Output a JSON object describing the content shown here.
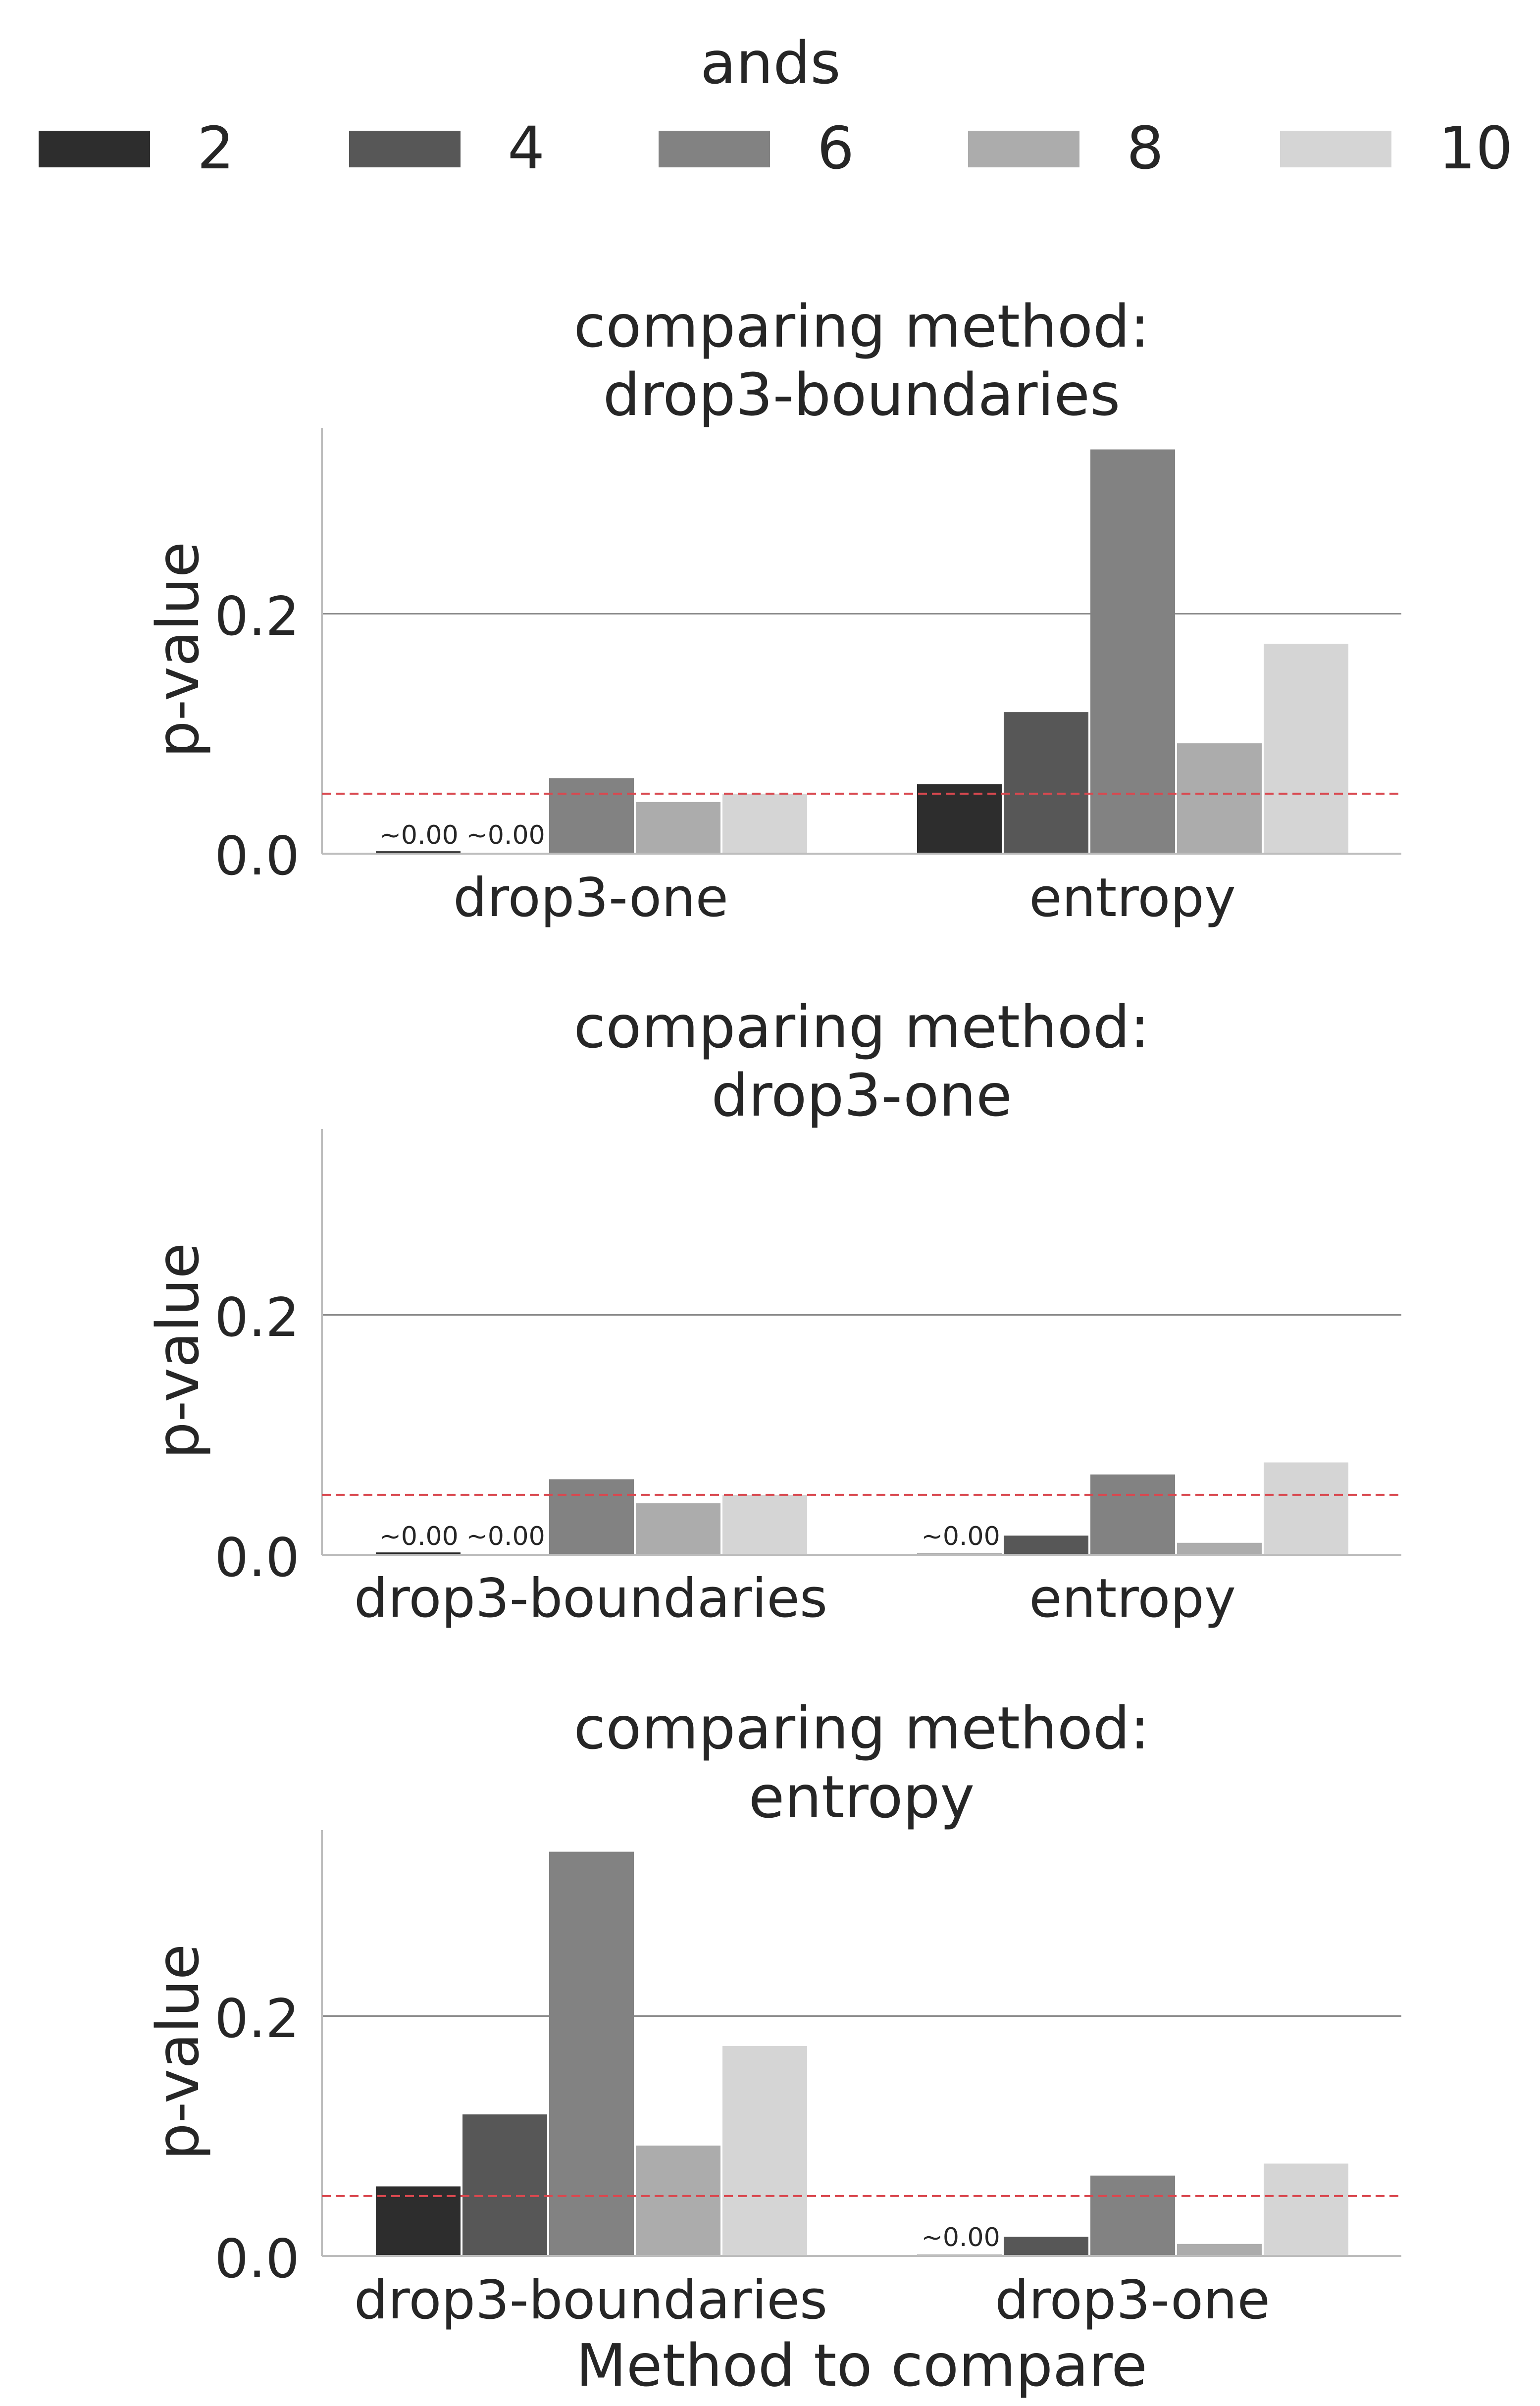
{
  "legend": {
    "title": "ands",
    "entries": [
      {
        "label": "2",
        "color": "#2d2d2d"
      },
      {
        "label": "4",
        "color": "#575757"
      },
      {
        "label": "6",
        "color": "#828282"
      },
      {
        "label": "8",
        "color": "#acacac"
      },
      {
        "label": "10",
        "color": "#d5d5d5"
      }
    ]
  },
  "colors": {
    "threshold_line": "#d9484f",
    "grid": "#8c8c8c",
    "axis": "#bdbdbd"
  },
  "chart_data": [
    {
      "type": "bar",
      "title": "comparing method:\ndrop3-boundaries",
      "title_lines": [
        "comparing method:",
        "drop3-boundaries"
      ],
      "ylabel": "p-value",
      "xlabel": "",
      "ylim": [
        0,
        0.355
      ],
      "yticks": [
        0.0,
        0.2
      ],
      "ytick_labels": [
        "0.0",
        "0.2"
      ],
      "gridlines": [
        0.2
      ],
      "threshold": 0.05,
      "categories": [
        "drop3-one",
        "entropy"
      ],
      "series": [
        {
          "name": "2",
          "values": [
            0.002,
            0.058
          ]
        },
        {
          "name": "4",
          "values": [
            0.0,
            0.118
          ]
        },
        {
          "name": "6",
          "values": [
            0.063,
            0.337
          ]
        },
        {
          "name": "8",
          "values": [
            0.043,
            0.092
          ]
        },
        {
          "name": "10",
          "values": [
            0.05,
            0.175
          ]
        }
      ],
      "annotations": [
        {
          "category": 0,
          "series": 0,
          "text": "~0.00"
        },
        {
          "category": 0,
          "series": 1,
          "text": "~0.00"
        }
      ]
    },
    {
      "type": "bar",
      "title": "comparing method:\ndrop3-one",
      "title_lines": [
        "comparing method:",
        "drop3-one"
      ],
      "ylabel": "p-value",
      "xlabel": "",
      "ylim": [
        0,
        0.355
      ],
      "yticks": [
        0.0,
        0.2
      ],
      "ytick_labels": [
        "0.0",
        "0.2"
      ],
      "gridlines": [
        0.2
      ],
      "threshold": 0.05,
      "categories": [
        "drop3-boundaries",
        "entropy"
      ],
      "series": [
        {
          "name": "2",
          "values": [
            0.002,
            0.001
          ]
        },
        {
          "name": "4",
          "values": [
            0.0,
            0.016
          ]
        },
        {
          "name": "6",
          "values": [
            0.063,
            0.067
          ]
        },
        {
          "name": "8",
          "values": [
            0.043,
            0.01
          ]
        },
        {
          "name": "10",
          "values": [
            0.05,
            0.077
          ]
        }
      ],
      "annotations": [
        {
          "category": 0,
          "series": 0,
          "text": "~0.00"
        },
        {
          "category": 0,
          "series": 1,
          "text": "~0.00"
        },
        {
          "category": 1,
          "series": 0,
          "text": "~0.00"
        }
      ]
    },
    {
      "type": "bar",
      "title": "comparing method:\nentropy",
      "title_lines": [
        "comparing method:",
        "entropy"
      ],
      "ylabel": "p-value",
      "xlabel": "Method to compare",
      "ylim": [
        0,
        0.355
      ],
      "yticks": [
        0.0,
        0.2
      ],
      "ytick_labels": [
        "0.0",
        "0.2"
      ],
      "gridlines": [
        0.2
      ],
      "threshold": 0.05,
      "categories": [
        "drop3-boundaries",
        "drop3-one"
      ],
      "series": [
        {
          "name": "2",
          "values": [
            0.058,
            0.001
          ]
        },
        {
          "name": "4",
          "values": [
            0.118,
            0.016
          ]
        },
        {
          "name": "6",
          "values": [
            0.337,
            0.067
          ]
        },
        {
          "name": "8",
          "values": [
            0.092,
            0.01
          ]
        },
        {
          "name": "10",
          "values": [
            0.175,
            0.077
          ]
        }
      ],
      "annotations": [
        {
          "category": 1,
          "series": 0,
          "text": "~0.00"
        }
      ]
    }
  ]
}
